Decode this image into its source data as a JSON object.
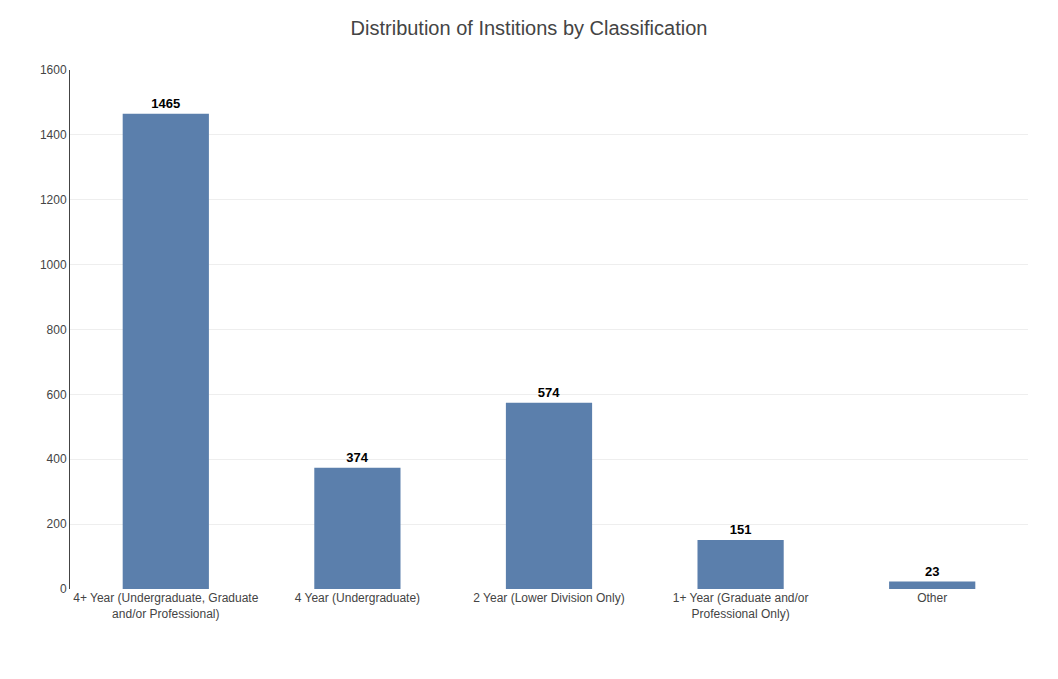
{
  "chart_data": {
    "type": "bar",
    "title": "Distribution of Institions by Classification",
    "categories": [
      "4+ Year (Undergraduate, Graduate\nand/or Professional)",
      "4 Year (Undergraduate)",
      "2 Year (Lower Division Only)",
      "1+ Year (Graduate and/or\nProfessional Only)",
      "Other"
    ],
    "values": [
      1465,
      374,
      574,
      151,
      23
    ],
    "color": "#5b7fac",
    "ylim": [
      0,
      1600
    ],
    "yticks": [
      0,
      200,
      400,
      600,
      800,
      1000,
      1200,
      1400,
      1600
    ],
    "grid": true,
    "data_labels": true
  }
}
